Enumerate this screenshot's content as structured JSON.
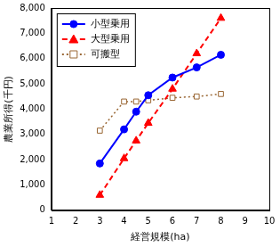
{
  "chart_data": {
    "type": "line",
    "x_label": "経営規模(ha)",
    "y_label": "農業所得(千円)",
    "x": [
      3,
      4,
      4.5,
      5,
      6,
      7,
      8
    ],
    "series": [
      {
        "name": "小型乗用",
        "color": "#0000ff",
        "marker": "circle",
        "line_style": "solid",
        "values": [
          1850,
          3200,
          3900,
          4550,
          5250,
          5650,
          6150
        ]
      },
      {
        "name": "大型乗用",
        "color": "#ff0000",
        "marker": "triangle",
        "line_style": "dashed",
        "values": [
          600,
          2050,
          2750,
          3450,
          4800,
          6200,
          7600
        ]
      },
      {
        "name": "可搬型",
        "color": "#996633",
        "marker": "open_square",
        "line_style": "dotted",
        "values": [
          3150,
          4300,
          4300,
          4350,
          4450,
          4500,
          4600
        ]
      }
    ],
    "xlim": [
      1,
      10
    ],
    "xticks": [
      1,
      2,
      3,
      4,
      5,
      6,
      7,
      8,
      9,
      10
    ],
    "ylim": [
      0,
      8000
    ],
    "yticks": [
      0,
      {
        "value": 1000,
        "label": "1,000"
      },
      {
        "value": 2000,
        "label": "2,000"
      },
      {
        "value": 3000,
        "label": "3,000"
      },
      {
        "value": 4000,
        "label": "4,000"
      },
      {
        "value": 5000,
        "label": "5,000"
      },
      {
        "value": 6000,
        "label": "6,000"
      },
      {
        "value": 7000,
        "label": "7,000"
      },
      {
        "value": 8000,
        "label": "8,000"
      }
    ],
    "grid": false,
    "legend": "upper left"
  }
}
